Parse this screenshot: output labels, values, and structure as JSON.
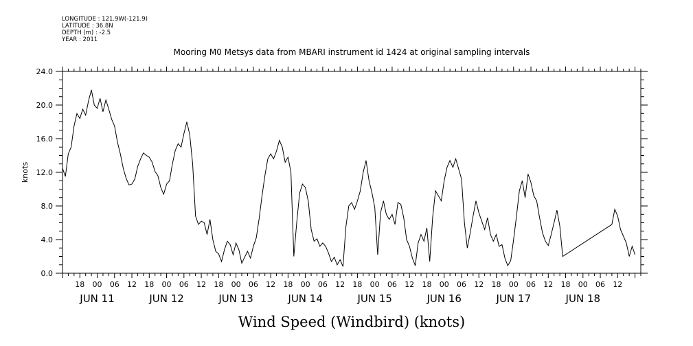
{
  "header": {
    "longitude": "LONGITUDE : 121.9W(-121.9)",
    "latitude": "LATITUDE : 36.8N",
    "depth": "DEPTH (m) : -2.5",
    "year": "YEAR : 2011"
  },
  "chart_data": {
    "type": "line",
    "title": "Mooring M0 Metsys data from MBARI instrument id 1424 at original sampling intervals",
    "xlabel": "Wind Speed (Windbird) (knots)",
    "ylabel": "knots",
    "ylim": [
      0,
      24
    ],
    "yticks": [
      "0.0",
      "4.0",
      "8.0",
      "12.0",
      "16.0",
      "20.0",
      "24.0"
    ],
    "xlim": [
      "2011-06-10 12:00",
      "2011-06-18 20:00"
    ],
    "hour_tick_labels": [
      {
        "t": "2011-06-10 18:00",
        "label": "18"
      },
      {
        "t": "2011-06-11 00:00",
        "label": "00"
      },
      {
        "t": "2011-06-11 06:00",
        "label": "06"
      },
      {
        "t": "2011-06-11 12:00",
        "label": "12"
      },
      {
        "t": "2011-06-11 18:00",
        "label": "18"
      },
      {
        "t": "2011-06-12 00:00",
        "label": "00"
      },
      {
        "t": "2011-06-12 06:00",
        "label": "06"
      },
      {
        "t": "2011-06-12 12:00",
        "label": "12"
      },
      {
        "t": "2011-06-12 18:00",
        "label": "18"
      },
      {
        "t": "2011-06-13 00:00",
        "label": "00"
      },
      {
        "t": "2011-06-13 06:00",
        "label": "06"
      },
      {
        "t": "2011-06-13 12:00",
        "label": "12"
      },
      {
        "t": "2011-06-13 18:00",
        "label": "18"
      },
      {
        "t": "2011-06-14 00:00",
        "label": "00"
      },
      {
        "t": "2011-06-14 06:00",
        "label": "06"
      },
      {
        "t": "2011-06-14 12:00",
        "label": "12"
      },
      {
        "t": "2011-06-14 18:00",
        "label": "18"
      },
      {
        "t": "2011-06-15 00:00",
        "label": "00"
      },
      {
        "t": "2011-06-15 06:00",
        "label": "06"
      },
      {
        "t": "2011-06-15 12:00",
        "label": "12"
      },
      {
        "t": "2011-06-15 18:00",
        "label": "18"
      },
      {
        "t": "2011-06-16 00:00",
        "label": "00"
      },
      {
        "t": "2011-06-16 06:00",
        "label": "06"
      },
      {
        "t": "2011-06-16 12:00",
        "label": "12"
      },
      {
        "t": "2011-06-16 18:00",
        "label": "18"
      },
      {
        "t": "2011-06-17 00:00",
        "label": "00"
      },
      {
        "t": "2011-06-17 06:00",
        "label": "06"
      },
      {
        "t": "2011-06-17 12:00",
        "label": "12"
      },
      {
        "t": "2011-06-17 18:00",
        "label": "18"
      },
      {
        "t": "2011-06-18 00:00",
        "label": "00"
      },
      {
        "t": "2011-06-18 06:00",
        "label": "06"
      },
      {
        "t": "2011-06-18 12:00",
        "label": "12"
      }
    ],
    "day_labels": [
      {
        "t": "2011-06-11 00:00",
        "label": "JUN 11"
      },
      {
        "t": "2011-06-12 00:00",
        "label": "JUN 12"
      },
      {
        "t": "2011-06-13 00:00",
        "label": "JUN 13"
      },
      {
        "t": "2011-06-14 00:00",
        "label": "JUN 14"
      },
      {
        "t": "2011-06-15 00:00",
        "label": "JUN 15"
      },
      {
        "t": "2011-06-16 00:00",
        "label": "JUN 16"
      },
      {
        "t": "2011-06-17 00:00",
        "label": "JUN 17"
      },
      {
        "t": "2011-06-18 00:00",
        "label": "JUN 18"
      }
    ],
    "grid": false,
    "series": [
      {
        "points": [
          [
            "2011-06-10 12:00",
            12.5
          ],
          [
            "2011-06-10 13:00",
            11.5
          ],
          [
            "2011-06-10 14:00",
            14.2
          ],
          [
            "2011-06-10 15:00",
            15.0
          ],
          [
            "2011-06-10 16:00",
            17.5
          ],
          [
            "2011-06-10 17:00",
            19.0
          ],
          [
            "2011-06-10 18:00",
            18.4
          ],
          [
            "2011-06-10 19:00",
            19.5
          ],
          [
            "2011-06-10 20:00",
            18.8
          ],
          [
            "2011-06-10 21:00",
            20.5
          ],
          [
            "2011-06-10 22:00",
            21.8
          ],
          [
            "2011-06-10 23:00",
            20.0
          ],
          [
            "2011-06-11 00:00",
            19.6
          ],
          [
            "2011-06-11 01:00",
            20.8
          ],
          [
            "2011-06-11 02:00",
            19.2
          ],
          [
            "2011-06-11 03:00",
            20.6
          ],
          [
            "2011-06-11 04:00",
            19.5
          ],
          [
            "2011-06-11 05:00",
            18.3
          ],
          [
            "2011-06-11 06:00",
            17.5
          ],
          [
            "2011-06-11 07:00",
            15.6
          ],
          [
            "2011-06-11 08:00",
            14.2
          ],
          [
            "2011-06-11 09:00",
            12.5
          ],
          [
            "2011-06-11 10:00",
            11.3
          ],
          [
            "2011-06-11 11:00",
            10.5
          ],
          [
            "2011-06-11 12:00",
            10.6
          ],
          [
            "2011-06-11 13:00",
            11.2
          ],
          [
            "2011-06-11 14:00",
            12.7
          ],
          [
            "2011-06-11 15:00",
            13.6
          ],
          [
            "2011-06-11 16:00",
            14.3
          ],
          [
            "2011-06-11 17:00",
            14.0
          ],
          [
            "2011-06-11 18:00",
            13.8
          ],
          [
            "2011-06-11 19:00",
            13.2
          ],
          [
            "2011-06-11 20:00",
            12.1
          ],
          [
            "2011-06-11 21:00",
            11.6
          ],
          [
            "2011-06-11 22:00",
            10.2
          ],
          [
            "2011-06-11 23:00",
            9.4
          ],
          [
            "2011-06-12 00:00",
            10.6
          ],
          [
            "2011-06-12 01:00",
            11.0
          ],
          [
            "2011-06-12 02:00",
            13.0
          ],
          [
            "2011-06-12 03:00",
            14.6
          ],
          [
            "2011-06-12 04:00",
            15.4
          ],
          [
            "2011-06-12 05:00",
            15.0
          ],
          [
            "2011-06-12 06:00",
            16.6
          ],
          [
            "2011-06-12 07:00",
            18.0
          ],
          [
            "2011-06-12 08:00",
            16.5
          ],
          [
            "2011-06-12 09:00",
            13.0
          ],
          [
            "2011-06-12 10:00",
            6.8
          ],
          [
            "2011-06-12 11:00",
            5.8
          ],
          [
            "2011-06-12 12:00",
            6.2
          ],
          [
            "2011-06-12 13:00",
            6.0
          ],
          [
            "2011-06-12 14:00",
            4.6
          ],
          [
            "2011-06-12 15:00",
            6.4
          ],
          [
            "2011-06-12 16:00",
            4.0
          ],
          [
            "2011-06-12 17:00",
            2.6
          ],
          [
            "2011-06-12 18:00",
            2.3
          ],
          [
            "2011-06-12 19:00",
            1.4
          ],
          [
            "2011-06-12 20:00",
            2.8
          ],
          [
            "2011-06-12 21:00",
            3.8
          ],
          [
            "2011-06-12 22:00",
            3.4
          ],
          [
            "2011-06-12 23:00",
            2.2
          ],
          [
            "2011-06-13 00:00",
            3.6
          ],
          [
            "2011-06-13 01:00",
            2.8
          ],
          [
            "2011-06-13 02:00",
            1.2
          ],
          [
            "2011-06-13 03:00",
            1.9
          ],
          [
            "2011-06-13 04:00",
            2.6
          ],
          [
            "2011-06-13 05:00",
            1.8
          ],
          [
            "2011-06-13 06:00",
            3.2
          ],
          [
            "2011-06-13 07:00",
            4.2
          ],
          [
            "2011-06-13 08:00",
            6.5
          ],
          [
            "2011-06-13 09:00",
            9.2
          ],
          [
            "2011-06-13 10:00",
            11.6
          ],
          [
            "2011-06-13 11:00",
            13.6
          ],
          [
            "2011-06-13 12:00",
            14.2
          ],
          [
            "2011-06-13 13:00",
            13.6
          ],
          [
            "2011-06-13 14:00",
            14.5
          ],
          [
            "2011-06-13 15:00",
            15.8
          ],
          [
            "2011-06-13 16:00",
            15.0
          ],
          [
            "2011-06-13 17:00",
            13.2
          ],
          [
            "2011-06-13 18:00",
            13.8
          ],
          [
            "2011-06-13 19:00",
            12.0
          ],
          [
            "2011-06-13 20:00",
            2.0
          ],
          [
            "2011-06-13 21:00",
            6.0
          ],
          [
            "2011-06-13 22:00",
            9.5
          ],
          [
            "2011-06-13 23:00",
            10.6
          ],
          [
            "2011-06-14 00:00",
            10.2
          ],
          [
            "2011-06-14 01:00",
            8.6
          ],
          [
            "2011-06-14 02:00",
            5.2
          ],
          [
            "2011-06-14 03:00",
            3.8
          ],
          [
            "2011-06-14 04:00",
            4.1
          ],
          [
            "2011-06-14 05:00",
            3.2
          ],
          [
            "2011-06-14 06:00",
            3.6
          ],
          [
            "2011-06-14 07:00",
            3.2
          ],
          [
            "2011-06-14 08:00",
            2.4
          ],
          [
            "2011-06-14 09:00",
            1.4
          ],
          [
            "2011-06-14 10:00",
            1.9
          ],
          [
            "2011-06-14 11:00",
            1.0
          ],
          [
            "2011-06-14 12:00",
            1.6
          ],
          [
            "2011-06-14 13:00",
            0.8
          ],
          [
            "2011-06-14 14:00",
            5.5
          ],
          [
            "2011-06-14 15:00",
            8.0
          ],
          [
            "2011-06-14 16:00",
            8.4
          ],
          [
            "2011-06-14 17:00",
            7.6
          ],
          [
            "2011-06-14 18:00",
            8.6
          ],
          [
            "2011-06-14 19:00",
            9.8
          ],
          [
            "2011-06-14 20:00",
            12.0
          ],
          [
            "2011-06-14 21:00",
            13.4
          ],
          [
            "2011-06-14 22:00",
            11.0
          ],
          [
            "2011-06-14 23:00",
            9.6
          ],
          [
            "2011-06-15 00:00",
            7.8
          ],
          [
            "2011-06-15 01:00",
            2.2
          ],
          [
            "2011-06-15 02:00",
            7.2
          ],
          [
            "2011-06-15 03:00",
            8.6
          ],
          [
            "2011-06-15 04:00",
            7.0
          ],
          [
            "2011-06-15 05:00",
            6.4
          ],
          [
            "2011-06-15 06:00",
            7.0
          ],
          [
            "2011-06-15 07:00",
            5.8
          ],
          [
            "2011-06-15 08:00",
            8.4
          ],
          [
            "2011-06-15 09:00",
            8.2
          ],
          [
            "2011-06-15 10:00",
            6.6
          ],
          [
            "2011-06-15 11:00",
            4.0
          ],
          [
            "2011-06-15 12:00",
            3.2
          ],
          [
            "2011-06-15 13:00",
            1.8
          ],
          [
            "2011-06-15 14:00",
            0.9
          ],
          [
            "2011-06-15 15:00",
            3.6
          ],
          [
            "2011-06-15 16:00",
            4.6
          ],
          [
            "2011-06-15 17:00",
            3.8
          ],
          [
            "2011-06-15 18:00",
            5.4
          ],
          [
            "2011-06-15 19:00",
            1.4
          ],
          [
            "2011-06-15 20:00",
            6.6
          ],
          [
            "2011-06-15 21:00",
            9.8
          ],
          [
            "2011-06-15 22:00",
            9.2
          ],
          [
            "2011-06-15 23:00",
            8.6
          ],
          [
            "2011-06-16 00:00",
            11.0
          ],
          [
            "2011-06-16 01:00",
            12.6
          ],
          [
            "2011-06-16 02:00",
            13.4
          ],
          [
            "2011-06-16 03:00",
            12.6
          ],
          [
            "2011-06-16 04:00",
            13.6
          ],
          [
            "2011-06-16 05:00",
            12.4
          ],
          [
            "2011-06-16 06:00",
            11.2
          ],
          [
            "2011-06-16 07:00",
            6.0
          ],
          [
            "2011-06-16 08:00",
            3.0
          ],
          [
            "2011-06-16 09:00",
            4.8
          ],
          [
            "2011-06-16 10:00",
            6.8
          ],
          [
            "2011-06-16 11:00",
            8.6
          ],
          [
            "2011-06-16 12:00",
            7.2
          ],
          [
            "2011-06-16 13:00",
            6.2
          ],
          [
            "2011-06-16 14:00",
            5.2
          ],
          [
            "2011-06-16 15:00",
            6.6
          ],
          [
            "2011-06-16 16:00",
            4.6
          ],
          [
            "2011-06-16 17:00",
            3.8
          ],
          [
            "2011-06-16 18:00",
            4.6
          ],
          [
            "2011-06-16 19:00",
            3.2
          ],
          [
            "2011-06-16 20:00",
            3.4
          ],
          [
            "2011-06-16 21:00",
            1.8
          ],
          [
            "2011-06-16 22:00",
            0.9
          ],
          [
            "2011-06-16 23:00",
            1.5
          ],
          [
            "2011-06-17 00:00",
            4.0
          ],
          [
            "2011-06-17 01:00",
            6.8
          ],
          [
            "2011-06-17 02:00",
            9.8
          ],
          [
            "2011-06-17 03:00",
            11.0
          ],
          [
            "2011-06-17 04:00",
            9.0
          ],
          [
            "2011-06-17 05:00",
            11.8
          ],
          [
            "2011-06-17 06:00",
            10.8
          ],
          [
            "2011-06-17 07:00",
            9.2
          ],
          [
            "2011-06-17 08:00",
            8.6
          ],
          [
            "2011-06-17 09:00",
            6.6
          ],
          [
            "2011-06-17 10:00",
            4.8
          ],
          [
            "2011-06-17 11:00",
            3.8
          ],
          [
            "2011-06-17 12:00",
            3.3
          ],
          [
            "2011-06-17 13:00",
            4.6
          ],
          [
            "2011-06-17 14:00",
            6.0
          ],
          [
            "2011-06-17 15:00",
            7.5
          ],
          [
            "2011-06-17 16:00",
            5.6
          ],
          [
            "2011-06-17 17:00",
            2.0
          ],
          [
            "2011-06-18 10:00",
            5.8
          ],
          [
            "2011-06-18 11:00",
            7.6
          ],
          [
            "2011-06-18 12:00",
            6.8
          ],
          [
            "2011-06-18 13:00",
            5.2
          ],
          [
            "2011-06-18 14:00",
            4.4
          ],
          [
            "2011-06-18 15:00",
            3.6
          ],
          [
            "2011-06-18 16:00",
            2.0
          ],
          [
            "2011-06-18 17:00",
            3.2
          ],
          [
            "2011-06-18 18:00",
            2.2
          ]
        ],
        "color": "#000000"
      }
    ]
  }
}
